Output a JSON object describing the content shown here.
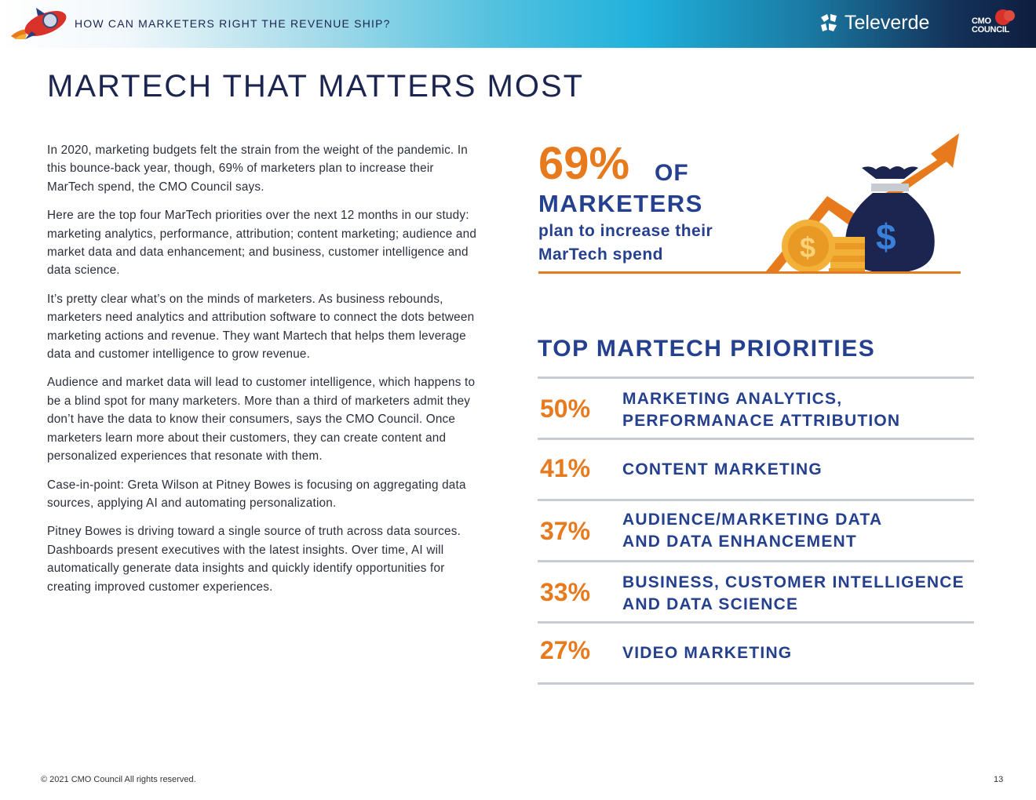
{
  "header": {
    "title": "HOW CAN MARKETERS RIGHT THE REVENUE SHIP?",
    "logo_televerde": "Televerde",
    "logo_cmo_line1": "CMO",
    "logo_cmo_line2": "COUNCIL"
  },
  "page_title": "MARTECH THAT MATTERS MOST",
  "body_paragraphs": [
    "In 2020, marketing budgets felt the strain from the weight of the pandemic. In this bounce-back year, though, 69% of marketers plan to increase their MarTech spend, the CMO Council says.",
    "Here are the top four MarTech priorities over the next 12 months in our study: marketing analytics, performance, attribution; content marketing; audience and market data and data enhancement; and business, customer intelligence and data science.",
    "It’s pretty clear what’s on the minds of marketers. As business rebounds, marketers need analytics and attribution software to connect the dots between marketing actions and revenue. They want Martech that helps them leverage data and customer intelligence to grow revenue.",
    "Audience and market data will lead to customer intelligence, which happens to be a blind spot for many marketers. More than a third of marketers admit they don’t have the data to know their consumers, says the CMO Council. Once marketers learn more about their customers, they can create content and personalized experiences that resonate with them.",
    "Case-in-point: Greta Wilson at Pitney Bowes is focusing on aggregating data sources, applying AI and automating personalization.",
    "Pitney Bowes is driving toward a single source of truth across data sources. Dashboards present executives with the latest insights. Over time, AI will automatically generate data insights and quickly identify opportunities for creating improved customer experiences."
  ],
  "callout": {
    "percent": "69%",
    "of": "OF",
    "marketers": "MARKETERS",
    "subtitle": "plan to increase their MarTech spend",
    "icon_symbol": "$"
  },
  "priorities": {
    "title": "TOP MARTECH PRIORITIES",
    "items": [
      {
        "percent": "50%",
        "line1": "MARKETING ANALYTICS,",
        "line2": "PERFORMANACE ATTRIBUTION"
      },
      {
        "percent": "41%",
        "line1": "CONTENT MARKETING",
        "line2": ""
      },
      {
        "percent": "37%",
        "line1": "AUDIENCE/MARKETING DATA",
        "line2": "AND DATA ENHANCEMENT"
      },
      {
        "percent": "33%",
        "line1": "BUSINESS, CUSTOMER INTELLIGENCE",
        "line2": "AND DATA SCIENCE"
      },
      {
        "percent": "27%",
        "line1": "VIDEO MARKETING",
        "line2": ""
      }
    ]
  },
  "footer": {
    "copyright": "© 2021 CMO Council  All rights reserved.",
    "page_number": "13"
  },
  "colors": {
    "navy": "#1c2550",
    "blue": "#24408e",
    "orange": "#e87a1e",
    "rule": "#c7ccd2"
  }
}
